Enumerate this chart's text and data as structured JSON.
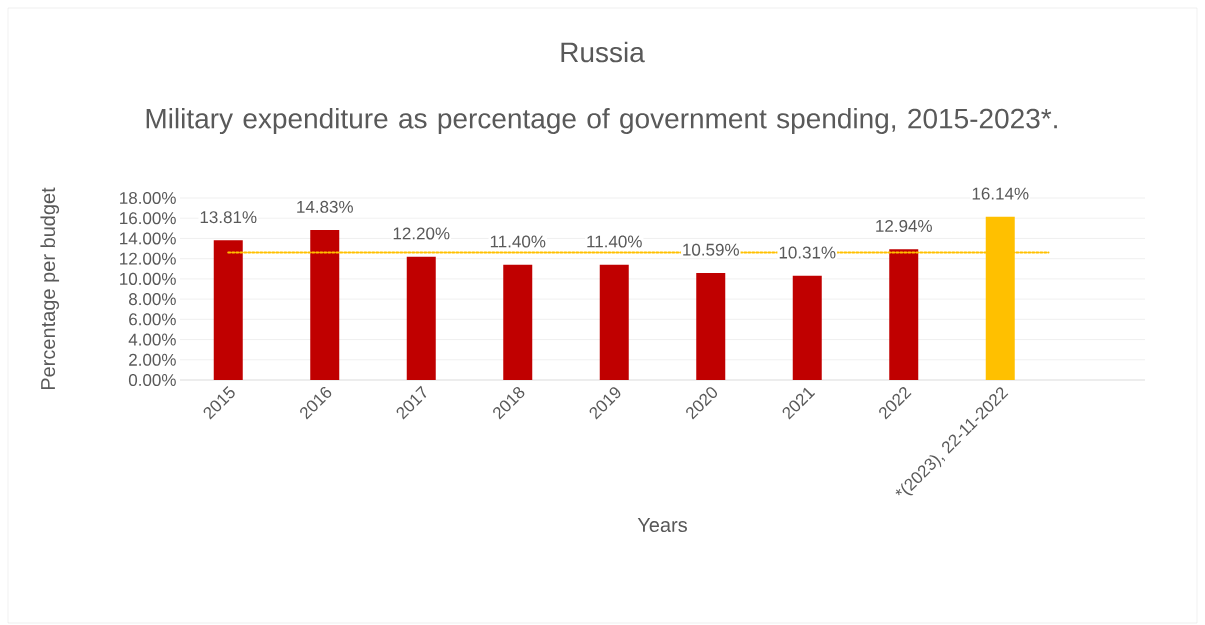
{
  "chart_data": {
    "type": "bar",
    "title": "Russia",
    "subtitle": "Military expenditure as percentage of government spending, 2015-2023*.",
    "xlabel": "Years",
    "ylabel": "Percentage per budget",
    "categories": [
      "2015",
      "2016",
      "2017",
      "2018",
      "2019",
      "2020",
      "2021",
      "2022",
      "*(2023), 22-11-2022",
      null
    ],
    "values": [
      13.81,
      14.83,
      12.2,
      11.4,
      11.4,
      10.59,
      10.31,
      12.94,
      16.14,
      null
    ],
    "value_labels": [
      "13.81%",
      "14.83%",
      "12.20%",
      "11.40%",
      "11.40%",
      "10.59%",
      "10.31%",
      "12.94%",
      "16.14%",
      null
    ],
    "colors": [
      "#c00000",
      "#c00000",
      "#c00000",
      "#c00000",
      "#c00000",
      "#c00000",
      "#c00000",
      "#c00000",
      "#ffc000",
      "#c00000"
    ],
    "ylim": [
      0,
      18
    ],
    "yticks": [
      {
        "value": 0,
        "label": "0.00%"
      },
      {
        "value": 2,
        "label": "2.00%"
      },
      {
        "value": 4,
        "label": "4.00%"
      },
      {
        "value": 6,
        "label": "6.00%"
      },
      {
        "value": 8,
        "label": "8.00%"
      },
      {
        "value": 10,
        "label": "10.00%"
      },
      {
        "value": 12,
        "label": "12.00%"
      },
      {
        "value": 14,
        "label": "14.00%"
      },
      {
        "value": 16,
        "label": "16.00%"
      },
      {
        "value": 18,
        "label": "18.00%"
      }
    ],
    "ref_lines": [
      {
        "axis": "y",
        "value": 12.62,
        "color": "#ffc000",
        "line_style": "dotted"
      }
    ],
    "grid": "y"
  }
}
